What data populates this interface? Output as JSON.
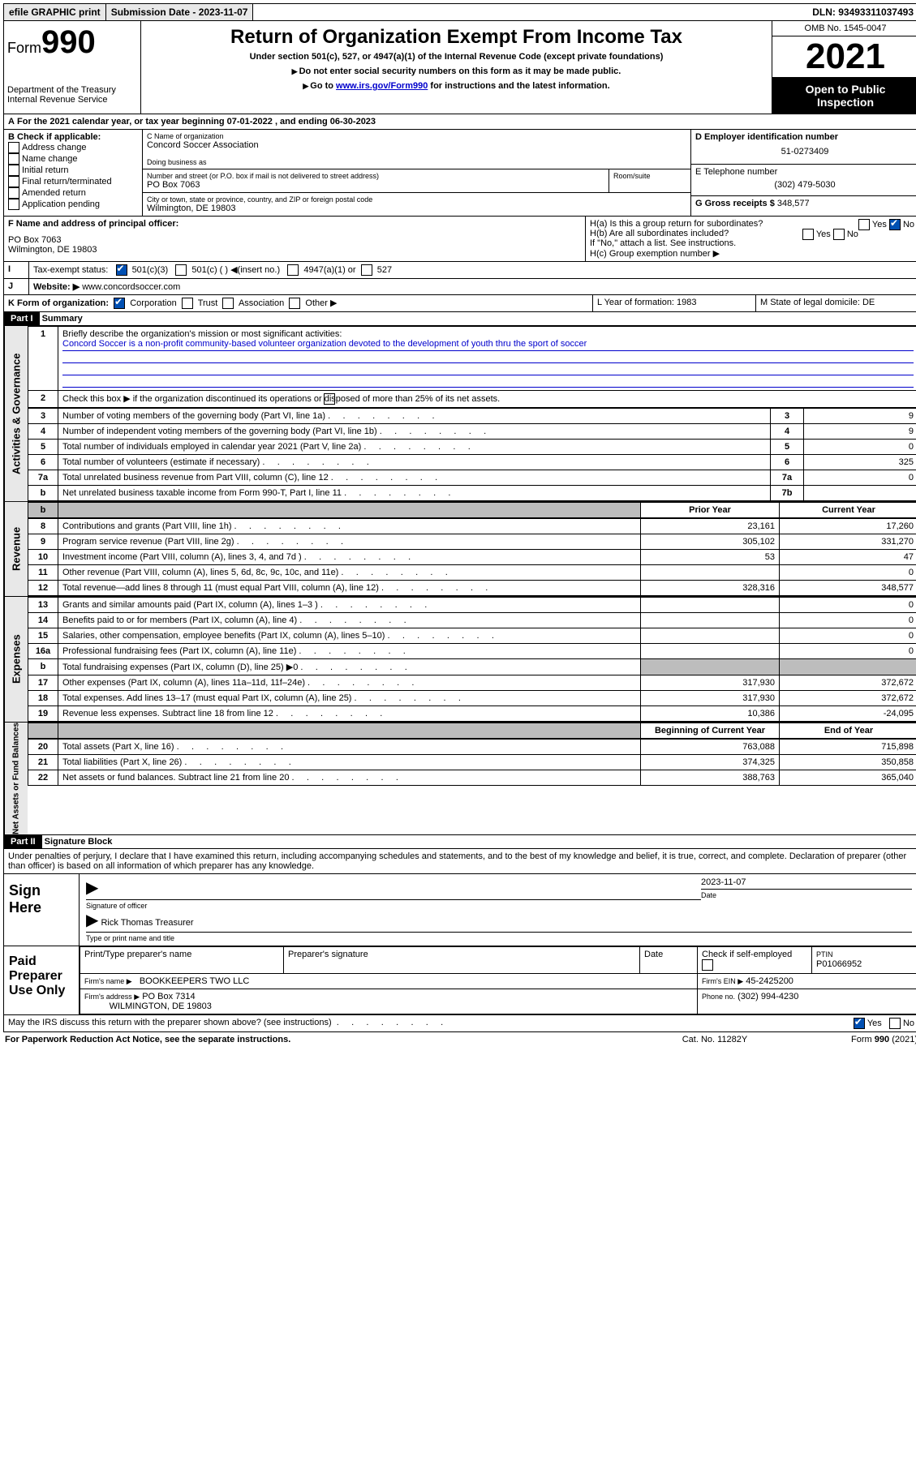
{
  "topbar": {
    "efile": "efile GRAPHIC print",
    "subdate_lbl": "Submission Date - 2023-11-07",
    "dln": "DLN: 93493311037493"
  },
  "header": {
    "form_label": "Form",
    "form_no": "990",
    "title": "Return of Organization Exempt From Income Tax",
    "sub1": "Under section 501(c), 527, or 4947(a)(1) of the Internal Revenue Code (except private foundations)",
    "sub2": "Do not enter social security numbers on this form as it may be made public.",
    "sub3_pre": "Go to ",
    "sub3_link": "www.irs.gov/Form990",
    "sub3_post": " for instructions and the latest information.",
    "dept": "Department of the Treasury",
    "irs": "Internal Revenue Service",
    "omb": "OMB No. 1545-0047",
    "year": "2021",
    "open": "Open to Public Inspection"
  },
  "lineA": "For the 2021 calendar year, or tax year beginning 07-01-2022   , and ending 06-30-2023",
  "boxB": {
    "head": "B Check if applicable:",
    "items": [
      "Address change",
      "Name change",
      "Initial return",
      "Final return/terminated",
      "Amended return",
      "Application pending"
    ]
  },
  "boxC": {
    "name_lbl": "C Name of organization",
    "name": "Concord Soccer Association",
    "dba_lbl": "Doing business as",
    "addr_lbl": "Number and street (or P.O. box if mail is not delivered to street address)",
    "room_lbl": "Room/suite",
    "addr": "PO Box 7063",
    "city_lbl": "City or town, state or province, country, and ZIP or foreign postal code",
    "city": "Wilmington, DE  19803"
  },
  "boxD": {
    "lbl": "D Employer identification number",
    "val": "51-0273409"
  },
  "boxE": {
    "lbl": "E Telephone number",
    "val": "(302) 479-5030"
  },
  "boxG": {
    "lbl": "G Gross receipts $",
    "val": "348,577"
  },
  "boxF": {
    "lbl": "F  Name and address of principal officer:",
    "l1": "PO Box 7063",
    "l2": "Wilmington, DE  19803"
  },
  "boxH": {
    "a": "H(a)  Is this a group return for subordinates?",
    "b": "H(b)  Are all subordinates included?",
    "note": "If \"No,\" attach a list. See instructions.",
    "c": "H(c)  Group exemption number ▶",
    "yes": "Yes",
    "no": "No"
  },
  "boxI": {
    "lbl": "Tax-exempt status:",
    "o1": "501(c)(3)",
    "o2": "501(c) (  ) ◀(insert no.)",
    "o3": "4947(a)(1) or",
    "o4": "527"
  },
  "boxJ": {
    "lbl": "Website: ▶",
    "val": "www.concordsoccer.com"
  },
  "boxK": {
    "lbl": "K Form of organization:",
    "o1": "Corporation",
    "o2": "Trust",
    "o3": "Association",
    "o4": "Other ▶"
  },
  "boxL": {
    "lbl": "L Year of formation: 1983"
  },
  "boxM": {
    "lbl": "M State of legal domicile: DE"
  },
  "part1": {
    "bar": "Part I",
    "title": "Summary"
  },
  "summary": {
    "q1": "Briefly describe the organization's mission or most significant activities:",
    "mission": "Concord Soccer is a non-profit community-based volunteer organization devoted to the development of youth thru the sport of soccer",
    "q2": "Check this box ▶        if the organization discontinued its operations or disposed of more than 25% of its net assets.",
    "lines_gov": [
      {
        "n": "3",
        "t": "Number of voting members of the governing body (Part VI, line 1a)",
        "box": "3",
        "v": "9"
      },
      {
        "n": "4",
        "t": "Number of independent voting members of the governing body (Part VI, line 1b)",
        "box": "4",
        "v": "9"
      },
      {
        "n": "5",
        "t": "Total number of individuals employed in calendar year 2021 (Part V, line 2a)",
        "box": "5",
        "v": "0"
      },
      {
        "n": "6",
        "t": "Total number of volunteers (estimate if necessary)",
        "box": "6",
        "v": "325"
      },
      {
        "n": "7a",
        "t": "Total unrelated business revenue from Part VIII, column (C), line 12",
        "box": "7a",
        "v": "0"
      },
      {
        "n": "b",
        "t": "Net unrelated business taxable income from Form 990-T, Part I, line 11",
        "box": "7b",
        "v": ""
      }
    ],
    "col_prior": "Prior Year",
    "col_curr": "Current Year",
    "rev": [
      {
        "n": "8",
        "t": "Contributions and grants (Part VIII, line 1h)",
        "p": "23,161",
        "c": "17,260"
      },
      {
        "n": "9",
        "t": "Program service revenue (Part VIII, line 2g)",
        "p": "305,102",
        "c": "331,270"
      },
      {
        "n": "10",
        "t": "Investment income (Part VIII, column (A), lines 3, 4, and 7d )",
        "p": "53",
        "c": "47"
      },
      {
        "n": "11",
        "t": "Other revenue (Part VIII, column (A), lines 5, 6d, 8c, 9c, 10c, and 11e)",
        "p": "",
        "c": "0"
      },
      {
        "n": "12",
        "t": "Total revenue—add lines 8 through 11 (must equal Part VIII, column (A), line 12)",
        "p": "328,316",
        "c": "348,577"
      }
    ],
    "exp": [
      {
        "n": "13",
        "t": "Grants and similar amounts paid (Part IX, column (A), lines 1–3 )",
        "p": "",
        "c": "0"
      },
      {
        "n": "14",
        "t": "Benefits paid to or for members (Part IX, column (A), line 4)",
        "p": "",
        "c": "0"
      },
      {
        "n": "15",
        "t": "Salaries, other compensation, employee benefits (Part IX, column (A), lines 5–10)",
        "p": "",
        "c": "0"
      },
      {
        "n": "16a",
        "t": "Professional fundraising fees (Part IX, column (A), line 11e)",
        "p": "",
        "c": "0"
      },
      {
        "n": "b",
        "t": "Total fundraising expenses (Part IX, column (D), line 25) ▶0",
        "p": "shade",
        "c": "shade"
      },
      {
        "n": "17",
        "t": "Other expenses (Part IX, column (A), lines 11a–11d, 11f–24e)",
        "p": "317,930",
        "c": "372,672"
      },
      {
        "n": "18",
        "t": "Total expenses. Add lines 13–17 (must equal Part IX, column (A), line 25)",
        "p": "317,930",
        "c": "372,672"
      },
      {
        "n": "19",
        "t": "Revenue less expenses. Subtract line 18 from line 12",
        "p": "10,386",
        "c": "-24,095"
      }
    ],
    "col_begin": "Beginning of Current Year",
    "col_end": "End of Year",
    "net": [
      {
        "n": "20",
        "t": "Total assets (Part X, line 16)",
        "p": "763,088",
        "c": "715,898"
      },
      {
        "n": "21",
        "t": "Total liabilities (Part X, line 26)",
        "p": "374,325",
        "c": "350,858"
      },
      {
        "n": "22",
        "t": "Net assets or fund balances. Subtract line 21 from line 20",
        "p": "388,763",
        "c": "365,040"
      }
    ]
  },
  "side": {
    "gov": "Activities & Governance",
    "rev": "Revenue",
    "exp": "Expenses",
    "net": "Net Assets or Fund Balances"
  },
  "part2": {
    "bar": "Part II",
    "title": "Signature Block"
  },
  "sig": {
    "decl": "Under penalties of perjury, I declare that I have examined this return, including accompanying schedules and statements, and to the best of my knowledge and belief, it is true, correct, and complete. Declaration of preparer (other than officer) is based on all information of which preparer has any knowledge.",
    "sign_here": "Sign Here",
    "sig_officer": "Signature of officer",
    "date": "Date",
    "date_val": "2023-11-07",
    "name_title": "Rick Thomas  Treasurer",
    "type_name": "Type or print name and title",
    "paid": "Paid Preparer Use Only",
    "pt_name": "Print/Type preparer's name",
    "prep_sig": "Preparer's signature",
    "check_if": "Check        if self-employed",
    "ptin_lbl": "PTIN",
    "ptin": "P01066952",
    "firm_name_lbl": "Firm's name   ▶",
    "firm_name": "BOOKKEEPERS TWO LLC",
    "firm_ein_lbl": "Firm's EIN ▶",
    "firm_ein": "45-2425200",
    "firm_addr_lbl": "Firm's address ▶",
    "firm_addr1": "PO Box 7314",
    "firm_addr2": "WILMINGTON, DE  19803",
    "phone_lbl": "Phone no.",
    "phone": "(302) 994-4230",
    "discuss": "May the IRS discuss this return with the preparer shown above? (see instructions)",
    "yes": "Yes",
    "no": "No"
  },
  "footer": {
    "pra": "For Paperwork Reduction Act Notice, see the separate instructions.",
    "cat": "Cat. No. 11282Y",
    "form": "Form 990 (2021)"
  }
}
